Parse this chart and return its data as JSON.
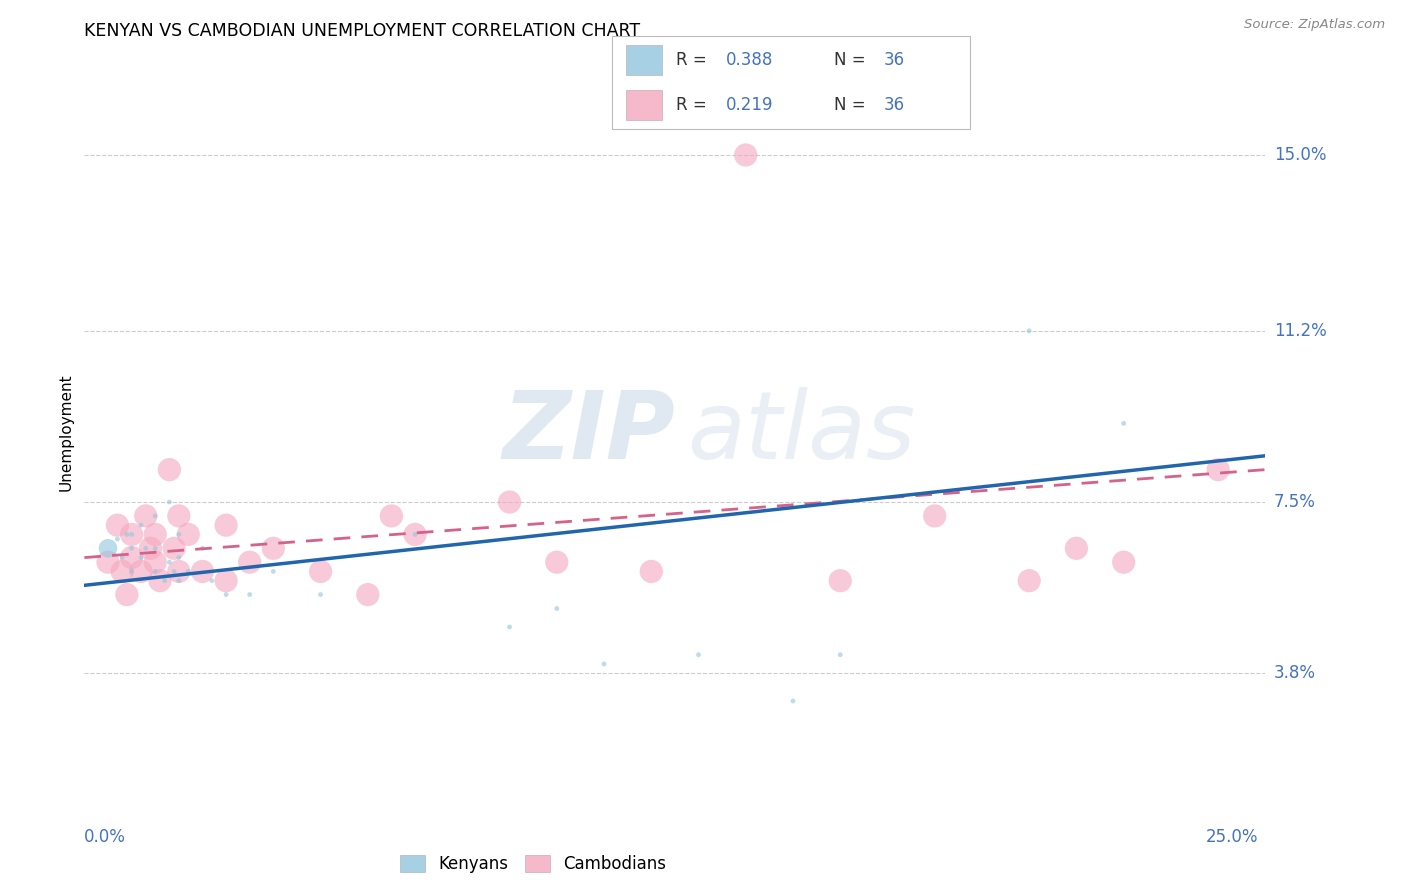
{
  "title": "KENYAN VS CAMBODIAN UNEMPLOYMENT CORRELATION CHART",
  "source": "Source: ZipAtlas.com",
  "ylabel": "Unemployment",
  "ytick_labels": [
    "3.8%",
    "7.5%",
    "11.2%",
    "15.0%"
  ],
  "ytick_values": [
    0.038,
    0.075,
    0.112,
    0.15
  ],
  "xlim": [
    0.0,
    0.25
  ],
  "ylim": [
    0.01,
    0.17
  ],
  "legend_kenyans": "Kenyans",
  "legend_cambodians": "Cambodians",
  "kenyan_color": "#92c5de",
  "cambodian_color": "#f4a6be",
  "kenyan_line_color": "#2166ac",
  "cambodian_line_color": "#d6618a",
  "R_kenyan": "0.388",
  "R_cambodian": "0.219",
  "N": "36",
  "legend_text_color": "#4472c4",
  "legend_label_color": "#333333",
  "watermark_color": "#c8d8e8",
  "kenyan_x": [
    0.005,
    0.007,
    0.008,
    0.009,
    0.01,
    0.01,
    0.01,
    0.012,
    0.012,
    0.013,
    0.015,
    0.015,
    0.015,
    0.017,
    0.018,
    0.018,
    0.019,
    0.02,
    0.02,
    0.02,
    0.022,
    0.025,
    0.027,
    0.03,
    0.035,
    0.04,
    0.05,
    0.07,
    0.09,
    0.1,
    0.11,
    0.13,
    0.15,
    0.16,
    0.2,
    0.22
  ],
  "kenyan_y": [
    0.065,
    0.067,
    0.063,
    0.068,
    0.06,
    0.065,
    0.068,
    0.063,
    0.07,
    0.065,
    0.06,
    0.065,
    0.072,
    0.058,
    0.062,
    0.075,
    0.06,
    0.058,
    0.063,
    0.068,
    0.06,
    0.065,
    0.058,
    0.055,
    0.055,
    0.06,
    0.055,
    0.068,
    0.048,
    0.052,
    0.04,
    0.042,
    0.032,
    0.042,
    0.112,
    0.092
  ],
  "kenyan_sizes": [
    300,
    20,
    20,
    20,
    20,
    20,
    20,
    20,
    20,
    20,
    20,
    20,
    20,
    20,
    20,
    20,
    20,
    20,
    20,
    20,
    20,
    20,
    20,
    20,
    20,
    20,
    20,
    20,
    20,
    20,
    20,
    20,
    20,
    20,
    20,
    20
  ],
  "cambodian_x": [
    0.005,
    0.007,
    0.008,
    0.009,
    0.01,
    0.01,
    0.012,
    0.013,
    0.014,
    0.015,
    0.015,
    0.016,
    0.018,
    0.019,
    0.02,
    0.02,
    0.022,
    0.025,
    0.03,
    0.03,
    0.035,
    0.04,
    0.05,
    0.06,
    0.065,
    0.07,
    0.09,
    0.1,
    0.12,
    0.14,
    0.16,
    0.18,
    0.2,
    0.21,
    0.22,
    0.24
  ],
  "cambodian_y": [
    0.062,
    0.07,
    0.06,
    0.055,
    0.063,
    0.068,
    0.06,
    0.072,
    0.065,
    0.062,
    0.068,
    0.058,
    0.082,
    0.065,
    0.06,
    0.072,
    0.068,
    0.06,
    0.07,
    0.058,
    0.062,
    0.065,
    0.06,
    0.055,
    0.072,
    0.068,
    0.075,
    0.062,
    0.06,
    0.15,
    0.058,
    0.072,
    0.058,
    0.065,
    0.062,
    0.082
  ],
  "cambodian_sizes": [
    20,
    20,
    20,
    20,
    20,
    20,
    20,
    20,
    20,
    20,
    20,
    20,
    20,
    20,
    20,
    20,
    20,
    20,
    20,
    20,
    20,
    20,
    20,
    20,
    20,
    20,
    20,
    20,
    20,
    20,
    20,
    20,
    20,
    20,
    20,
    20
  ]
}
